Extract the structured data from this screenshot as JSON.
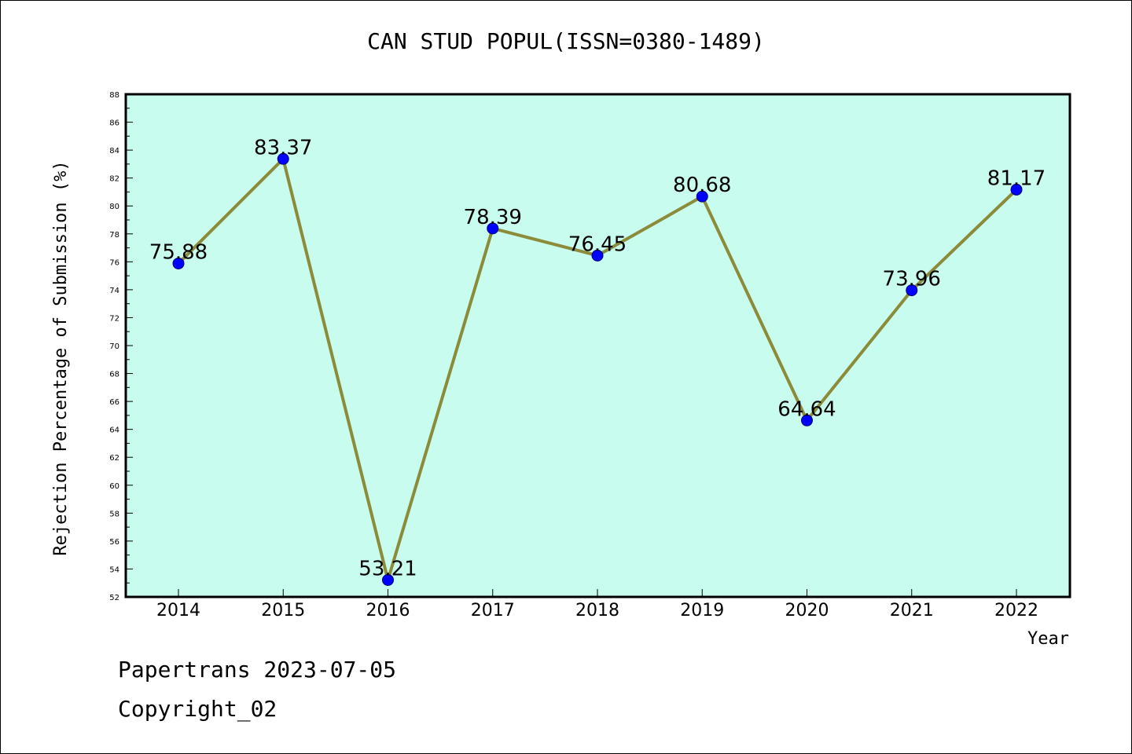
{
  "chart_data": {
    "type": "line",
    "title": "CAN STUD POPUL(ISSN=0380-1489)",
    "xlabel": "Year",
    "ylabel": "Rejection Percentage of Submission (%)",
    "categories": [
      "2014",
      "2015",
      "2016",
      "2017",
      "2018",
      "2019",
      "2020",
      "2021",
      "2022"
    ],
    "series": [
      {
        "values": [
          75.88,
          83.37,
          53.21,
          78.39,
          76.45,
          80.68,
          64.64,
          73.96,
          81.17
        ]
      }
    ],
    "data_labels": [
      "75.88",
      "83.37",
      "53.21",
      "78.39",
      "76.45",
      "80.68",
      "64.64",
      "73.96",
      "81.17"
    ],
    "ylim": [
      52,
      88
    ],
    "yticks": [
      "52",
      "54",
      "56",
      "58",
      "60",
      "62",
      "64",
      "66",
      "68",
      "70",
      "72",
      "74",
      "76",
      "78",
      "80",
      "82",
      "84",
      "86",
      "88"
    ],
    "grid": false,
    "colors": {
      "plot_background": "#c8fcee",
      "line": "#8b8b3a",
      "marker": "#0000ff"
    }
  },
  "footer": {
    "date": "Papertrans 2023-07-05",
    "copyright": "Copyright_02"
  }
}
